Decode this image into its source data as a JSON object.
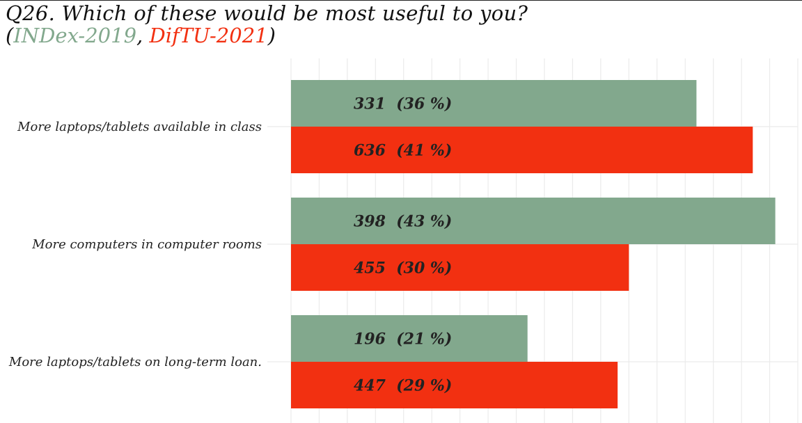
{
  "title": "Q26. Which of these would be most useful to you?",
  "subtitle": {
    "open": "(",
    "series1": "INDex-2019",
    "sep": ", ",
    "series2": "DifTU-2021",
    "close": ")"
  },
  "colors": {
    "INDex-2019": "#82a88d",
    "DifTU-2021": "#f23011",
    "grid": "#ebebeb"
  },
  "chart_data": {
    "type": "bar",
    "orientation": "horizontal",
    "categories": [
      "More laptops/tablets available in class",
      "More computers in computer rooms",
      "More laptops/tablets on long-term loan."
    ],
    "series": [
      {
        "name": "INDex-2019",
        "values": [
          331,
          398,
          196
        ],
        "percent_labels": [
          "36 %",
          "43 %",
          "21 %"
        ]
      },
      {
        "name": "DifTU-2021",
        "values": [
          636,
          455,
          447
        ],
        "percent_labels": [
          "41 %",
          "30 %",
          "29 %"
        ]
      }
    ],
    "bar_labels": [
      [
        "331  (36 %)",
        "398  (43 %)",
        "196  (21 %)"
      ],
      [
        "636  (41 %)",
        "455  (30 %)",
        "447  (29 %)"
      ]
    ],
    "xlim": [
      0,
      45
    ],
    "xlabel": "",
    "ylabel": "",
    "grid": true,
    "legend": "none"
  }
}
